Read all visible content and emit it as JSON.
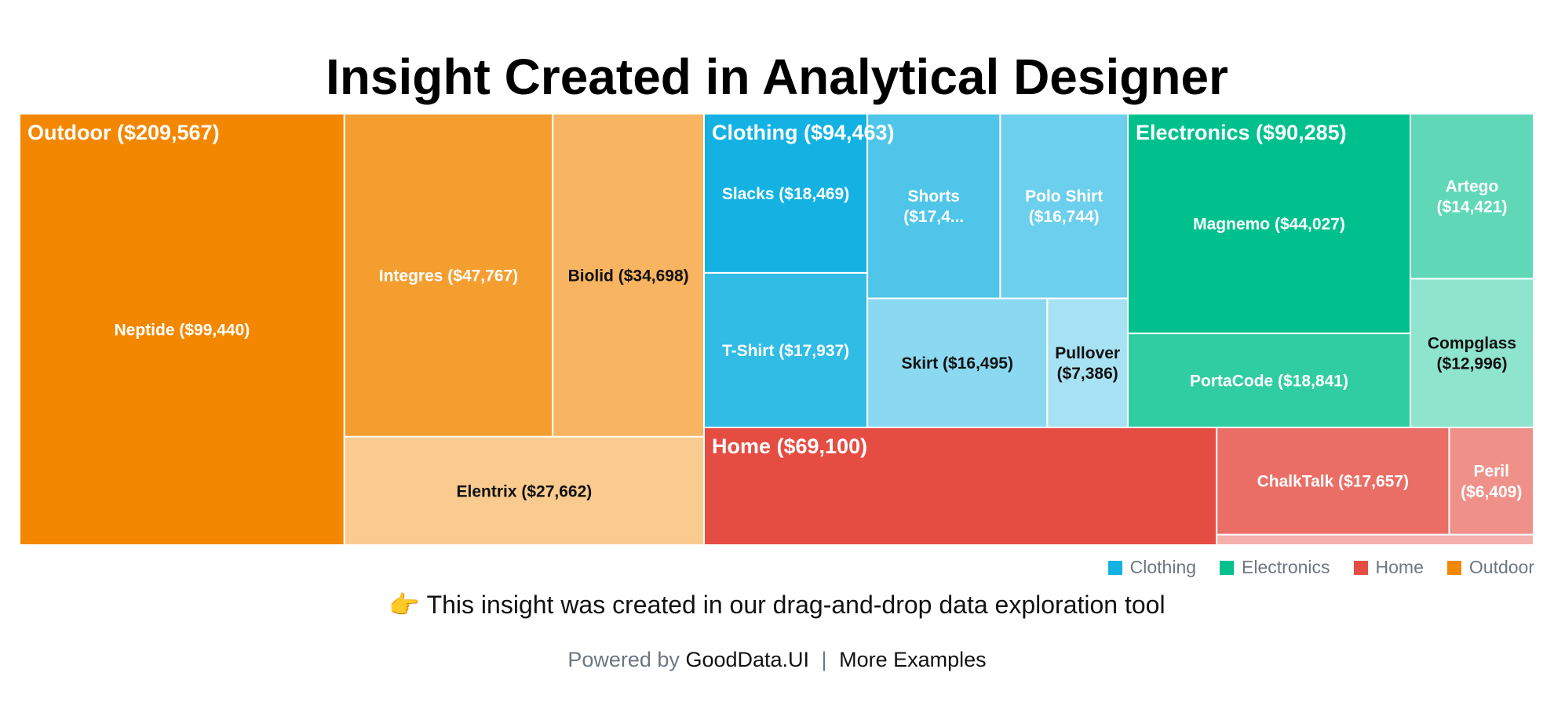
{
  "title": "Insight Created in Analytical Designer",
  "chart_data": {
    "type": "treemap",
    "groups": [
      {
        "name": "Outdoor",
        "label": "Outdoor ($209,567)",
        "value": 209567,
        "color": "#f38700",
        "items": [
          {
            "name": "Neptide",
            "label": "Neptide ($99,440)",
            "value": 99440
          },
          {
            "name": "Integres",
            "label": "Integres ($47,767)",
            "value": 47767
          },
          {
            "name": "Biolid",
            "label": "Biolid ($34,698)",
            "value": 34698
          },
          {
            "name": "Elentrix",
            "label": "Elentrix ($27,662)",
            "value": 27662
          }
        ]
      },
      {
        "name": "Clothing",
        "label": "Clothing ($94,463)",
        "value": 94463,
        "color": "#14b2e2",
        "items": [
          {
            "name": "Slacks",
            "label": "Slacks ($18,469)",
            "value": 18469
          },
          {
            "name": "T-Shirt",
            "label": "T-Shirt ($17,937)",
            "value": 17937
          },
          {
            "name": "Shorts",
            "label": "Shorts ($17,4...",
            "value": 17432
          },
          {
            "name": "Polo Shirt",
            "label": "Polo Shirt ($16,744)",
            "value": 16744
          },
          {
            "name": "Skirt",
            "label": "Skirt ($16,495)",
            "value": 16495
          },
          {
            "name": "Pullover",
            "label": "Pullover ($7,386)",
            "value": 7386
          }
        ]
      },
      {
        "name": "Electronics",
        "label": "Electronics ($90,285)",
        "value": 90285,
        "color": "#00c18d",
        "items": [
          {
            "name": "Magnemo",
            "label": "Magnemo ($44,027)",
            "value": 44027
          },
          {
            "name": "PortaCode",
            "label": "PortaCode ($18,841)",
            "value": 18841
          },
          {
            "name": "Artego",
            "label": "Artego ($14,421)",
            "value": 14421
          },
          {
            "name": "Compglass",
            "label": "Compglass ($12,996)",
            "value": 12996
          }
        ]
      },
      {
        "name": "Home",
        "label": "Home ($69,100)",
        "value": 69100,
        "color": "#e54d42",
        "items": [
          {
            "name": "Home (unnamed product)",
            "label": "",
            "value": 42700
          },
          {
            "name": "ChalkTalk",
            "label": "ChalkTalk ($17,657)",
            "value": 17657
          },
          {
            "name": "Peril",
            "label": "Peril ($6,409)",
            "value": 6409
          },
          {
            "name": "Home (small product)",
            "label": "",
            "value": 2334
          }
        ]
      }
    ],
    "legend": {
      "position": "bottom-right",
      "items": [
        {
          "label": "Clothing",
          "color": "#14b2e2"
        },
        {
          "label": "Electronics",
          "color": "#00c18d"
        },
        {
          "label": "Home",
          "color": "#e54d42"
        },
        {
          "label": "Outdoor",
          "color": "#f38700"
        }
      ]
    }
  },
  "note": {
    "icon": "pointing-right-hand-icon",
    "glyph": "👉",
    "text": "This insight was created in our drag-and-drop data exploration tool"
  },
  "footer": {
    "prefix": "Powered by",
    "link1": "GoodData.UI",
    "separator": "|",
    "link2": "More Examples"
  }
}
